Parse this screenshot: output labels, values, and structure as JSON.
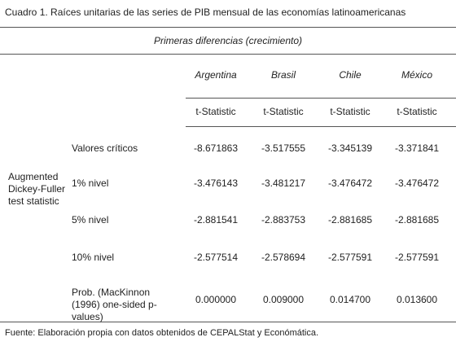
{
  "title": "Cuadro 1. Raíces unitarias de las series de PIB mensual de las economías latinoamericanas",
  "table": {
    "group_header": "Primeras diferencias (crecimiento)",
    "columns": [
      "Argentina",
      "Brasil",
      "Chile",
      "México"
    ],
    "subheader": [
      "t-Statistic",
      "t-Statistic",
      "t-Statistic",
      "t-Statistic"
    ],
    "row_group_label": "Augmented Dickey-Fuller test statistic",
    "rows": [
      {
        "label": "Valores críticos",
        "values": [
          "-8.671863",
          "-3.517555",
          "-3.345139",
          "-3.371841"
        ]
      },
      {
        "label": "1% nivel",
        "values": [
          "-3.476143",
          "-3.481217",
          "-3.476472",
          "-3.476472"
        ]
      },
      {
        "label": "5% nivel",
        "values": [
          "-2.881541",
          "-2.883753",
          "-2.881685",
          "-2.881685"
        ]
      },
      {
        "label": "10% nivel",
        "values": [
          "-2.577514",
          "-2.578694",
          "-2.577591",
          "-2.577591"
        ]
      },
      {
        "label": "Prob. (MacKinnon (1996) one-sided p-values)",
        "values": [
          "0.000000",
          "0.009000",
          "0.014700",
          "0.013600"
        ]
      }
    ]
  },
  "footnote": "Fuente: Elaboración propia con datos obtenidos de CEPALStat y Económática."
}
